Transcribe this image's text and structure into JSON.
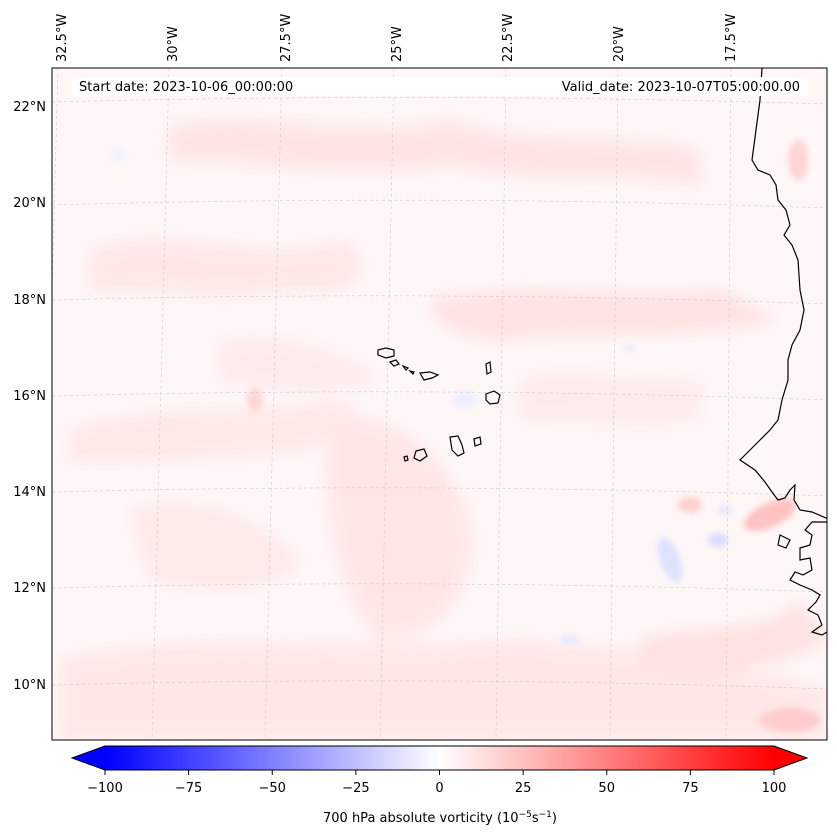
{
  "header": {
    "start_date": "Start date: 2023-10-06_00:00:00",
    "valid_date": "Valid_date: 2023-10-07T05:00:00.00"
  },
  "axes": {
    "longitude_labels": [
      "32.5°W",
      "30°W",
      "27.5°W",
      "25°W",
      "22.5°W",
      "20°W",
      "17.5°W"
    ],
    "latitude_labels": [
      "22°N",
      "20°N",
      "18°N",
      "16°N",
      "14°N",
      "12°N",
      "10°N"
    ]
  },
  "colorbar": {
    "tick_labels": [
      "−100",
      "−75",
      "−50",
      "−25",
      "0",
      "25",
      "50",
      "75",
      "100"
    ],
    "label_main": "700 hPa absolute vorticity (10",
    "label_exp1": "−5",
    "label_mid": "s",
    "label_exp2": "−1",
    "label_end": ")",
    "min": -100,
    "max": 100,
    "colors": {
      "negative": "#0000ff",
      "zero": "#ffffff",
      "positive": "#ff0000"
    }
  },
  "colors": {
    "coastline": "#000000",
    "gridline": "#bfbfbf",
    "field_background": "#fff7f7"
  }
}
